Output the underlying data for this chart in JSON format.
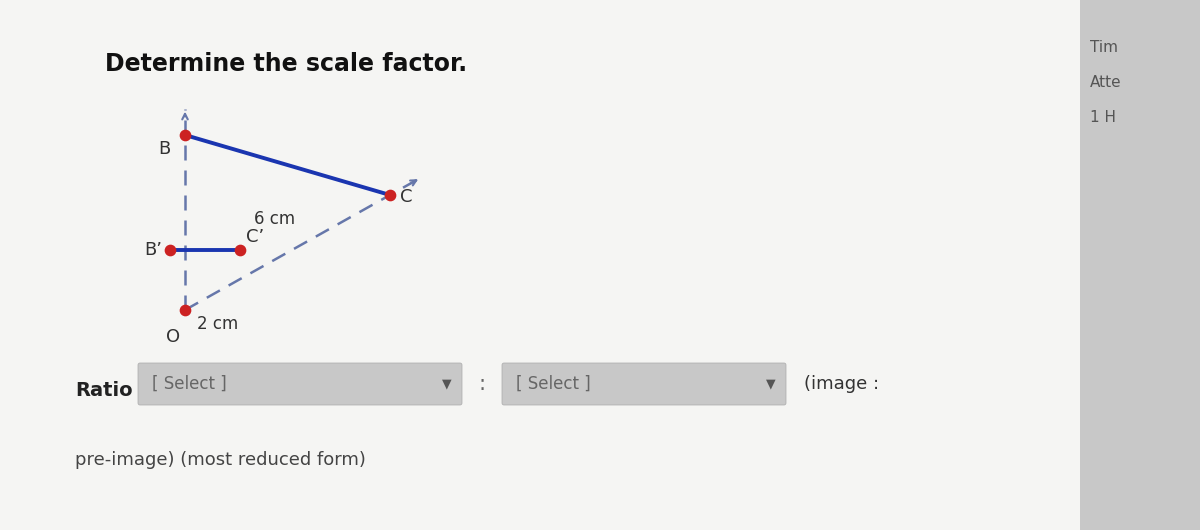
{
  "title": "Determine the scale factor.",
  "main_bg": "#f5f5f3",
  "right_panel_bg": "#c8c8c8",
  "right_panel_texts": [
    "Tim",
    "Atte",
    "1 H"
  ],
  "solid_line_color": "#1a35b0",
  "dashed_line_color": "#6677aa",
  "dot_color": "#cc2222",
  "dot_size": 55,
  "label_6cm": "6 cm",
  "label_2cm": "2 cm",
  "label_B": "B",
  "label_C": "C",
  "label_Bp": "B’",
  "label_Cp": "C’",
  "label_O": "O",
  "ratio_label": "Ratio",
  "select1": "[ Select ]",
  "select2": "[ Select ]",
  "colon": ":",
  "image_label": "(image :",
  "bottom_text": "pre-image) (most reduced form)"
}
